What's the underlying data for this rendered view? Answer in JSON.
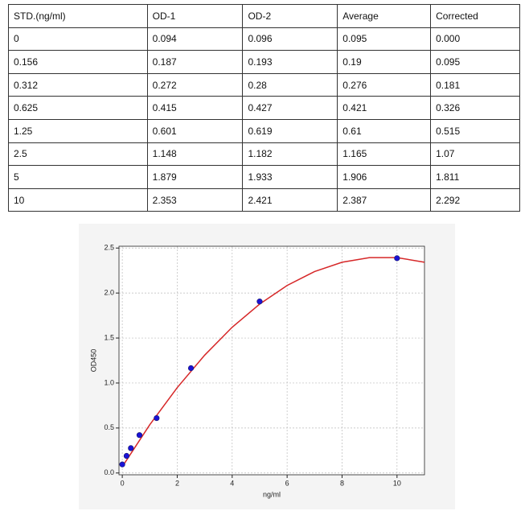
{
  "table": {
    "header": [
      "STD.(ng/ml)",
      "OD-1",
      "OD-2",
      "Average",
      "Corrected"
    ],
    "rows": [
      [
        "0",
        "0.094",
        "0.096",
        "0.095",
        "0.000"
      ],
      [
        "0.156",
        "0.187",
        "0.193",
        "0.19",
        "0.095"
      ],
      [
        "0.312",
        "0.272",
        "0.28",
        "0.276",
        "0.181"
      ],
      [
        "0.625",
        "0.415",
        "0.427",
        "0.421",
        "0.326"
      ],
      [
        "1.25",
        "0.601",
        "0.619",
        "0.61",
        "0.515"
      ],
      [
        "2.5",
        "1.148",
        "1.182",
        "1.165",
        "1.07"
      ],
      [
        "5",
        "1.879",
        "1.933",
        "1.906",
        "1.811"
      ],
      [
        "10",
        "2.353",
        "2.421",
        "2.387",
        "2.292"
      ]
    ]
  },
  "chart_data": {
    "type": "scatter",
    "xlabel": "ng/ml",
    "ylabel": "OD450",
    "xlim": [
      -0.12,
      11
    ],
    "ylim": [
      -0.02,
      2.52
    ],
    "xticks": [
      0,
      2,
      4,
      6,
      8,
      10
    ],
    "yticks": [
      {
        "value": 0,
        "label": "0.0"
      },
      0.5,
      {
        "value": 1,
        "label": "1.0"
      },
      1.5,
      {
        "value": 2,
        "label": "2.0"
      },
      2.5
    ],
    "grid": true,
    "series": [
      {
        "type": "scatter",
        "color": "#1a12d6",
        "x": [
          0,
          0.156,
          0.312,
          0.625,
          1.25,
          2.5,
          5,
          10
        ],
        "values": [
          0.095,
          0.19,
          0.276,
          0.421,
          0.61,
          1.165,
          1.906,
          2.387
        ]
      },
      {
        "type": "line",
        "color": "#d62728",
        "x": [
          0,
          1,
          2,
          3,
          4,
          5,
          6,
          7,
          8,
          9,
          10,
          11
        ],
        "values": [
          0.07,
          0.536,
          0.949,
          1.31,
          1.62,
          1.877,
          2.084,
          2.239,
          2.342,
          2.394,
          2.394,
          2.342
        ]
      }
    ]
  }
}
